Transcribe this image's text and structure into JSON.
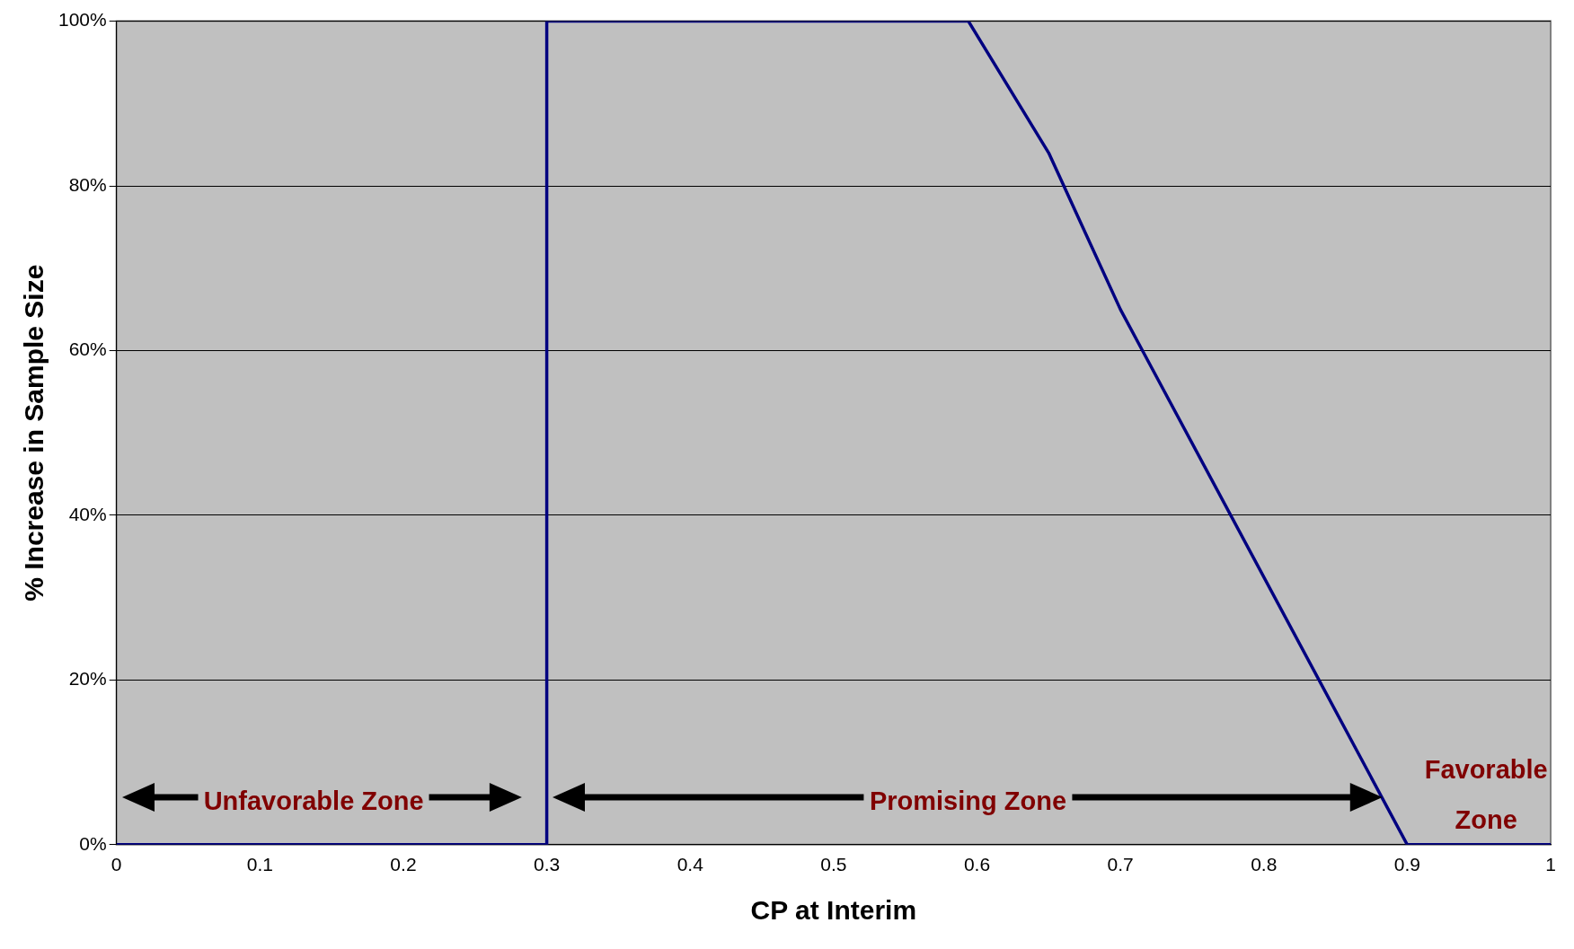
{
  "chart_data": {
    "type": "line",
    "xlabel": "CP at Interim",
    "ylabel": "% Increase in Sample Size",
    "series": [
      {
        "color": "#000080",
        "x": [
          0,
          0.3,
          0.3,
          0.594,
          0.65,
          0.7,
          0.9,
          1
        ],
        "values": [
          0,
          0,
          100,
          100,
          84,
          65,
          0,
          0
        ]
      }
    ],
    "xlim": [
      0,
      1
    ],
    "xticks": [
      0,
      0.1,
      0.2,
      0.3,
      0.4,
      0.5,
      0.6,
      0.7,
      0.8,
      0.9,
      1
    ],
    "ylim": [
      0,
      100
    ],
    "yticks": [
      {
        "value": 0,
        "label": "0%"
      },
      {
        "value": 20,
        "label": "20%"
      },
      {
        "value": 40,
        "label": "40%"
      },
      {
        "value": 60,
        "label": "60%"
      },
      {
        "value": 80,
        "label": "80%"
      },
      {
        "value": 100,
        "label": "100%"
      }
    ],
    "grid": "y",
    "legend": false,
    "marker": "none",
    "line_style": "solid",
    "annotations": [
      "Unfavorable Zone",
      "Promising Zone",
      "Favorable Zone"
    ]
  }
}
